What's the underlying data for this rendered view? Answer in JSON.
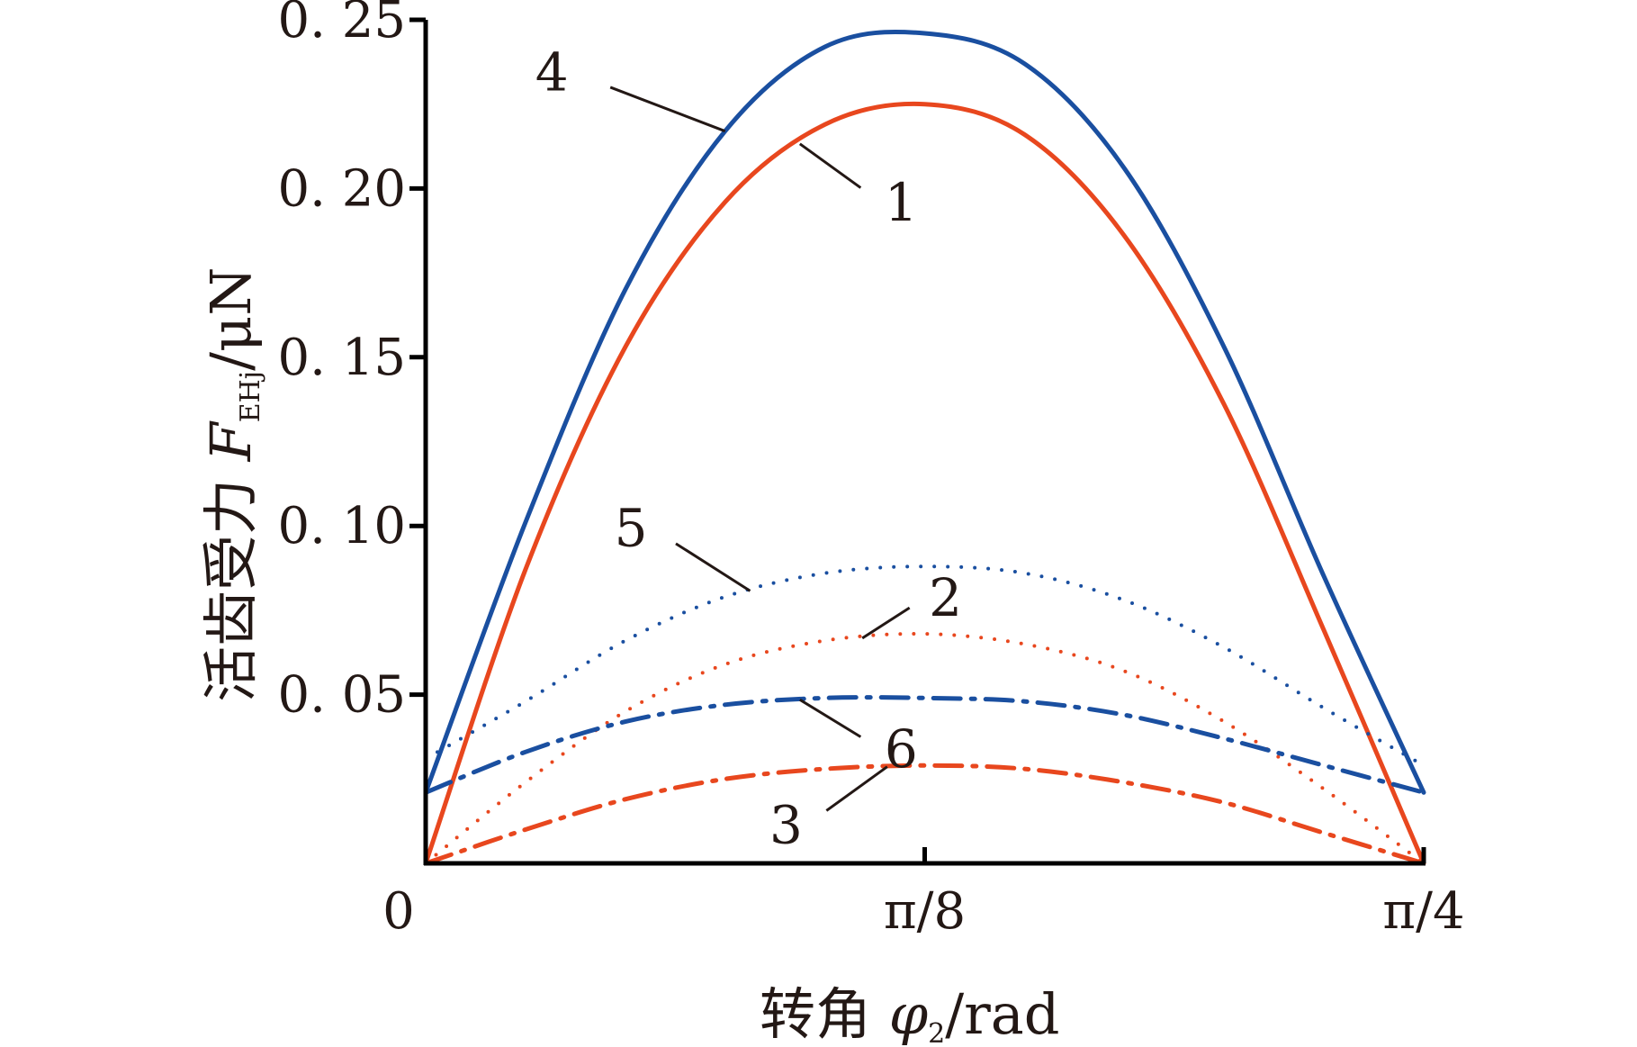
{
  "chart_data": {
    "type": "line",
    "title": "",
    "xlabel": {
      "prefix": "转角 ",
      "symbol": "φ",
      "subscript": "2",
      "unit": "/rad"
    },
    "ylabel": {
      "prefix": "活齿受力 ",
      "symbol": "F",
      "subscript": "EHj",
      "unit": "/μN"
    },
    "xlim": [
      0,
      0.7854
    ],
    "ylim": [
      0,
      0.25
    ],
    "x_ticks": [
      {
        "value": 0,
        "label": "0"
      },
      {
        "value": 0.3927,
        "label": "π/8"
      },
      {
        "value": 0.7854,
        "label": "π/4"
      }
    ],
    "y_ticks": [
      {
        "value": 0.05,
        "label": "0. 05"
      },
      {
        "value": 0.1,
        "label": "0. 10"
      },
      {
        "value": 0.15,
        "label": "0. 15"
      },
      {
        "value": 0.2,
        "label": "0. 20"
      },
      {
        "value": 0.25,
        "label": "0. 25"
      }
    ],
    "grid": false,
    "legend": "none",
    "x": [
      0,
      0.0785,
      0.1571,
      0.2356,
      0.3142,
      0.3927,
      0.4712,
      0.5498,
      0.6283,
      0.7069,
      0.7854
    ],
    "series": [
      {
        "name": "1",
        "color": "#e8471e",
        "style": "solid",
        "width": 5,
        "values": [
          0.0,
          0.087,
          0.153,
          0.196,
          0.219,
          0.225,
          0.216,
          0.186,
          0.136,
          0.069,
          0.0
        ]
      },
      {
        "name": "2",
        "color": "#e8471e",
        "style": "dotted",
        "width": 4,
        "values": [
          0.0,
          0.024,
          0.045,
          0.059,
          0.066,
          0.068,
          0.065,
          0.057,
          0.042,
          0.022,
          0.0
        ]
      },
      {
        "name": "3",
        "color": "#e8471e",
        "style": "dashdot",
        "width": 5,
        "values": [
          0.0,
          0.01,
          0.019,
          0.025,
          0.028,
          0.029,
          0.028,
          0.024,
          0.018,
          0.009,
          0.0
        ]
      },
      {
        "name": "4",
        "color": "#1a4fa0",
        "style": "solid",
        "width": 5,
        "values": [
          0.021,
          0.101,
          0.17,
          0.217,
          0.242,
          0.246,
          0.237,
          0.206,
          0.153,
          0.085,
          0.021
        ]
      },
      {
        "name": "5",
        "color": "#1a4fa0",
        "style": "dotted",
        "width": 4,
        "values": [
          0.031,
          0.048,
          0.066,
          0.079,
          0.086,
          0.088,
          0.086,
          0.078,
          0.064,
          0.046,
          0.029
        ]
      },
      {
        "name": "6",
        "color": "#1a4fa0",
        "style": "dashdot",
        "width": 5,
        "values": [
          0.021,
          0.033,
          0.042,
          0.047,
          0.049,
          0.049,
          0.048,
          0.044,
          0.037,
          0.029,
          0.021
        ]
      }
    ],
    "annotations": [
      {
        "text": "4",
        "series": "4",
        "x": 0.2356
      },
      {
        "text": "1",
        "series": "1",
        "x": 0.2945
      },
      {
        "text": "5",
        "series": "5",
        "x": 0.2553
      },
      {
        "text": "2",
        "series": "2",
        "x": 0.3436
      },
      {
        "text": "6",
        "series": "6",
        "x": 0.2945
      },
      {
        "text": "3",
        "series": "3",
        "x": 0.3632
      }
    ]
  }
}
